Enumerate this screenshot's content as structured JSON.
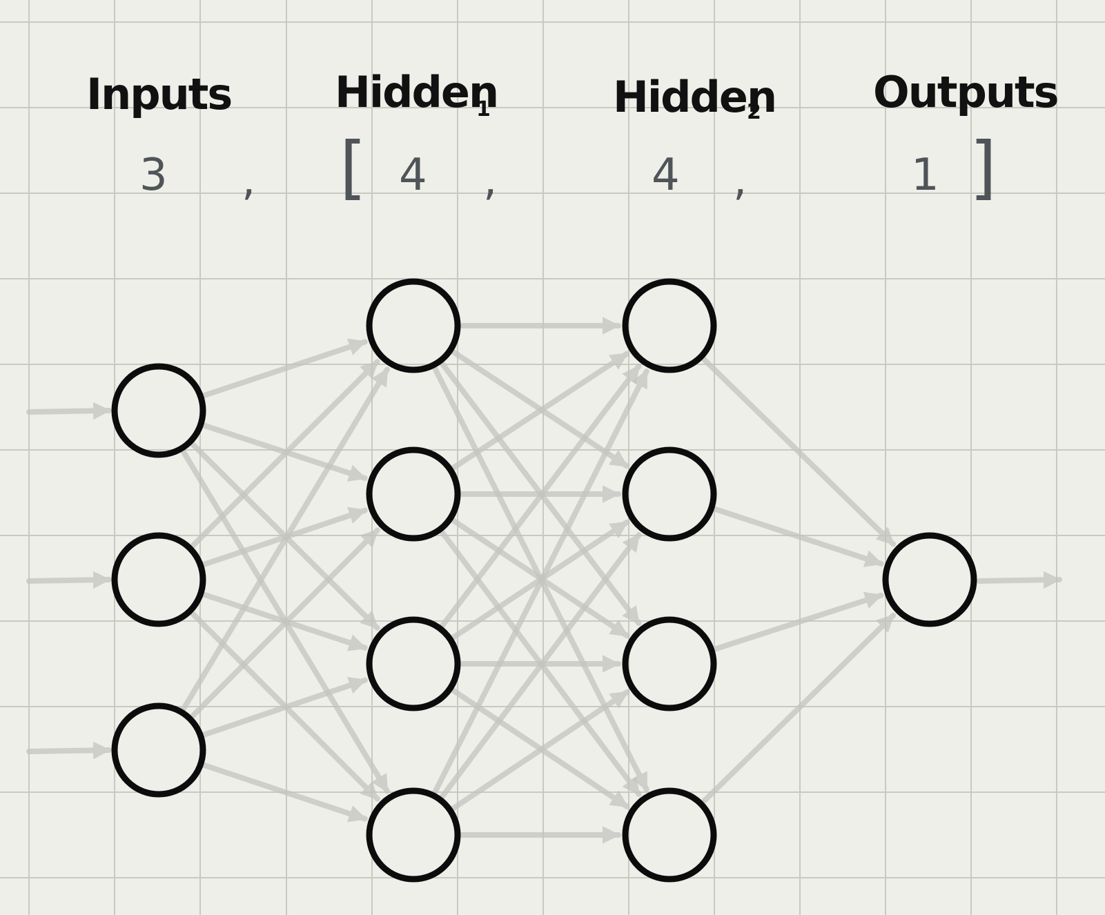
{
  "layers": [
    {
      "title": "Inputs",
      "subscript": "",
      "nodes": 3
    },
    {
      "title": "Hidden",
      "subscript": "1",
      "nodes": 4
    },
    {
      "title": "Hidden",
      "subscript": "2",
      "nodes": 4
    },
    {
      "title": "Outputs",
      "subscript": "",
      "nodes": 1
    }
  ],
  "config": {
    "values": [
      "3",
      "4",
      "4",
      "1"
    ],
    "separator": ",",
    "open_bracket": "[",
    "close_bracket": "]"
  },
  "colors": {
    "background": "#efefea",
    "grid": "#c9c9c2",
    "edge": "#c4c4c0",
    "node_stroke": "#0c0c0c",
    "config_text": "#4f5458"
  },
  "style": "hand-drawn on grid paper"
}
